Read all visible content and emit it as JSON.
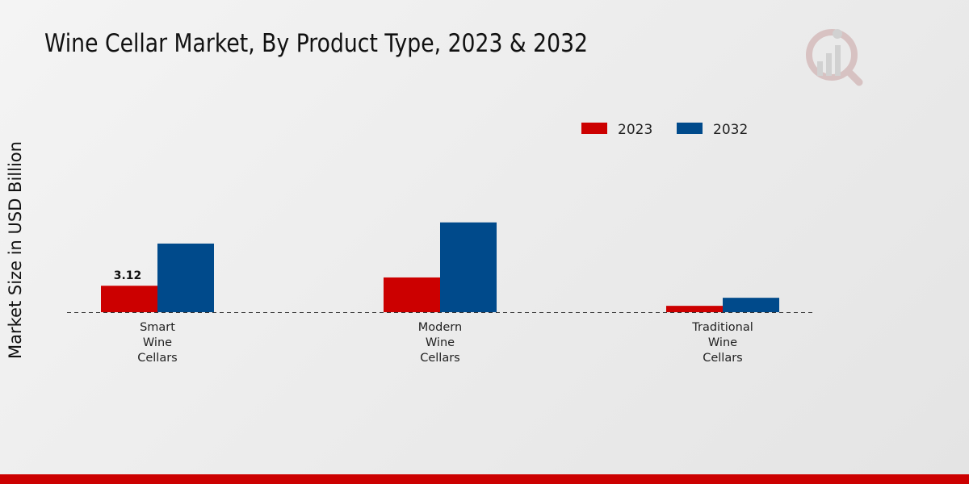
{
  "chart_data": {
    "type": "bar",
    "title": "Wine Cellar Market, By Product Type, 2023 & 2032",
    "xlabel": "",
    "ylabel": "Market Size in USD Billion",
    "categories": [
      [
        "Smart",
        "Wine",
        "Cellars"
      ],
      [
        "Modern",
        "Wine",
        "Cellars"
      ],
      [
        "Traditional",
        "Wine",
        "Cellars"
      ]
    ],
    "series": [
      {
        "name": "2023",
        "color": "#cc0000",
        "values": [
          3.12,
          4.1,
          0.75
        ]
      },
      {
        "name": "2032",
        "color": "#004a8b",
        "values": [
          8.1,
          10.6,
          1.7
        ]
      }
    ],
    "data_labels": [
      {
        "series": 0,
        "category": 0,
        "text": "3.12"
      }
    ],
    "ylim": [
      0,
      13
    ],
    "grid": false,
    "baseline": "dashed",
    "legend_position": "top-right"
  },
  "colors": {
    "bottom_bar": "#cc0000",
    "logo": "#c9a2a2"
  },
  "icons": {
    "logo": "market-research-logo-icon"
  }
}
